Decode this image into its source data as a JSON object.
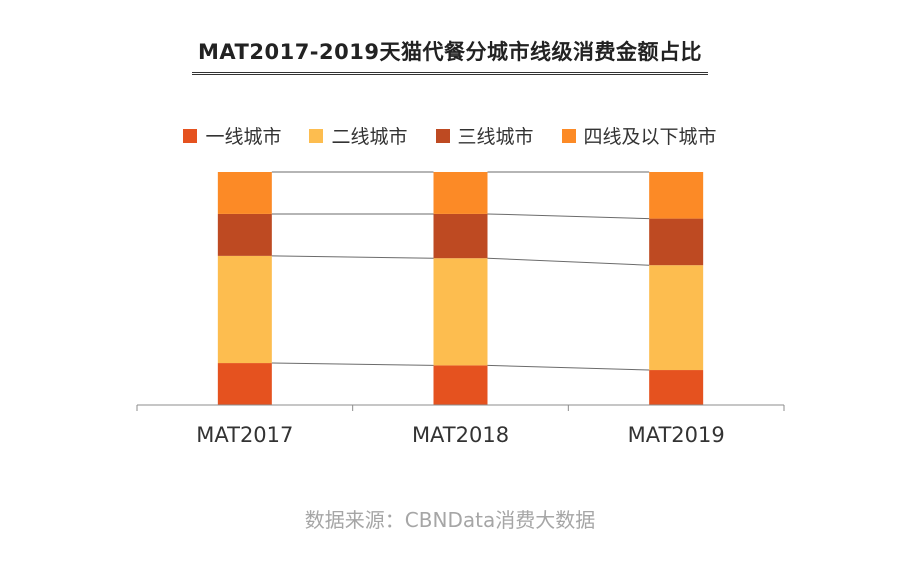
{
  "title": "MAT2017-2019天猫代餐分城市线级消费金额占比",
  "source": "数据来源：CBNData消费大数据",
  "chart_data": {
    "type": "bar",
    "stacked": true,
    "normalized": true,
    "title": "MAT2017-2019天猫代餐分城市线级消费金额占比",
    "categories": [
      "MAT2017",
      "MAT2018",
      "MAT2019"
    ],
    "ylim": [
      0,
      1
    ],
    "legend_position": "top",
    "grid": false,
    "series_connectors": true,
    "series": [
      {
        "name": "一线城市",
        "color": "#E5521F",
        "values": [
          0.18,
          0.17,
          0.15
        ]
      },
      {
        "name": "二线城市",
        "color": "#FDBD4F",
        "values": [
          0.46,
          0.46,
          0.45
        ]
      },
      {
        "name": "三线城市",
        "color": "#BE4A22",
        "values": [
          0.18,
          0.19,
          0.2
        ]
      },
      {
        "name": "四线及以下城市",
        "color": "#FC8A26",
        "values": [
          0.18,
          0.18,
          0.2
        ]
      }
    ]
  }
}
